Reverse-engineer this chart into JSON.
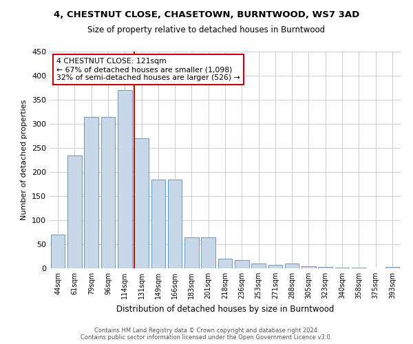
{
  "title_line1": "4, CHESTNUT CLOSE, CHASETOWN, BURNTWOOD, WS7 3AD",
  "title_line2": "Size of property relative to detached houses in Burntwood",
  "xlabel": "Distribution of detached houses by size in Burntwood",
  "ylabel": "Number of detached properties",
  "footer_line1": "Contains HM Land Registry data © Crown copyright and database right 2024.",
  "footer_line2": "Contains public sector information licensed under the Open Government Licence v3.0.",
  "categories": [
    "44sqm",
    "61sqm",
    "79sqm",
    "96sqm",
    "114sqm",
    "131sqm",
    "149sqm",
    "166sqm",
    "183sqm",
    "201sqm",
    "218sqm",
    "236sqm",
    "253sqm",
    "271sqm",
    "288sqm",
    "305sqm",
    "323sqm",
    "340sqm",
    "358sqm",
    "375sqm",
    "393sqm"
  ],
  "values": [
    70,
    235,
    315,
    315,
    370,
    270,
    185,
    185,
    65,
    65,
    20,
    17,
    10,
    7,
    10,
    5,
    3,
    2,
    1,
    0,
    3
  ],
  "bar_color": "#c8d8e8",
  "bar_edge_color": "#5a8ab0",
  "property_index": 5,
  "annotation_line1": "4 CHESTNUT CLOSE: 121sqm",
  "annotation_line2": "← 67% of detached houses are smaller (1,098)",
  "annotation_line3": "32% of semi-detached houses are larger (526) →",
  "vline_color": "#cc0000",
  "annotation_box_edgecolor": "#cc0000",
  "annotation_box_facecolor": "#ffffff",
  "ylim": [
    0,
    450
  ],
  "yticks": [
    0,
    50,
    100,
    150,
    200,
    250,
    300,
    350,
    400,
    450
  ],
  "background_color": "#ffffff",
  "grid_color": "#cccccc"
}
